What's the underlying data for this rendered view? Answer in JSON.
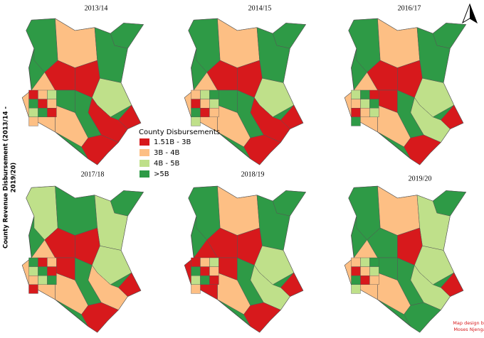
{
  "panels": [
    {
      "title": "2013/14"
    },
    {
      "title": "2014/15"
    },
    {
      "title": "2016/17"
    },
    {
      "title": "2017/18"
    },
    {
      "title": "2018/19"
    },
    {
      "title": "2019/20"
    }
  ],
  "legend": {
    "title": "County Disbursements",
    "items": [
      {
        "label": "1.51B - 3B",
        "color": "#d7191c"
      },
      {
        "label": "3B - 4B",
        "color": "#fdbf84"
      },
      {
        "label": "4B - 5B",
        "color": "#bfe08a"
      },
      {
        "label": ">5B",
        "color": "#2e9a46"
      }
    ]
  },
  "y_label": [
    "County Revenue Disbursement (2013/14 -",
    "2019/20)"
  ],
  "credit": [
    "Map design by",
    "Moses Njenga"
  ]
}
